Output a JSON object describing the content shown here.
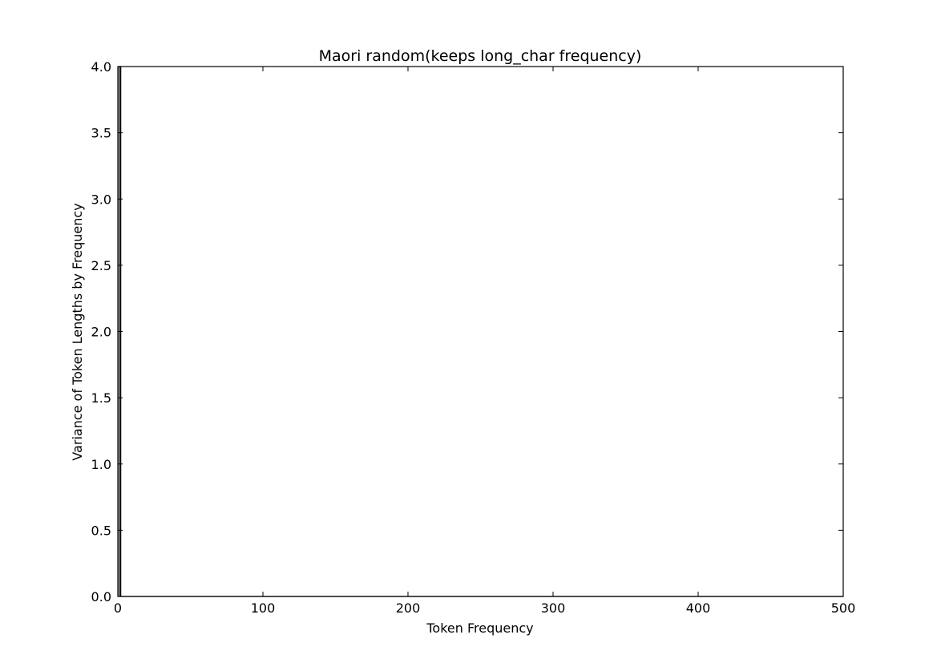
{
  "chart_data": {
    "type": "line",
    "title": "Maori random(keeps long_char frequency)",
    "xlabel": "Token Frequency",
    "ylabel": "Variance of Token Lengths by Frequency",
    "xlim": [
      0,
      500
    ],
    "ylim": [
      0,
      4.0
    ],
    "xticks": [
      "0",
      "100",
      "200",
      "300",
      "400",
      "500"
    ],
    "yticks": [
      "0.0",
      "0.5",
      "1.0",
      "1.5",
      "2.0",
      "2.5",
      "3.0",
      "3.5",
      "4.0"
    ],
    "grid": false,
    "series": [
      {
        "color": "#000000",
        "x": [
          1,
          1,
          2,
          2,
          3,
          4,
          5,
          10,
          20,
          50,
          100,
          200,
          300,
          400,
          500
        ],
        "y": [
          0,
          4.0,
          4.0,
          0,
          0,
          0,
          0,
          0,
          0,
          0,
          0,
          0,
          0,
          0,
          0
        ]
      }
    ]
  }
}
